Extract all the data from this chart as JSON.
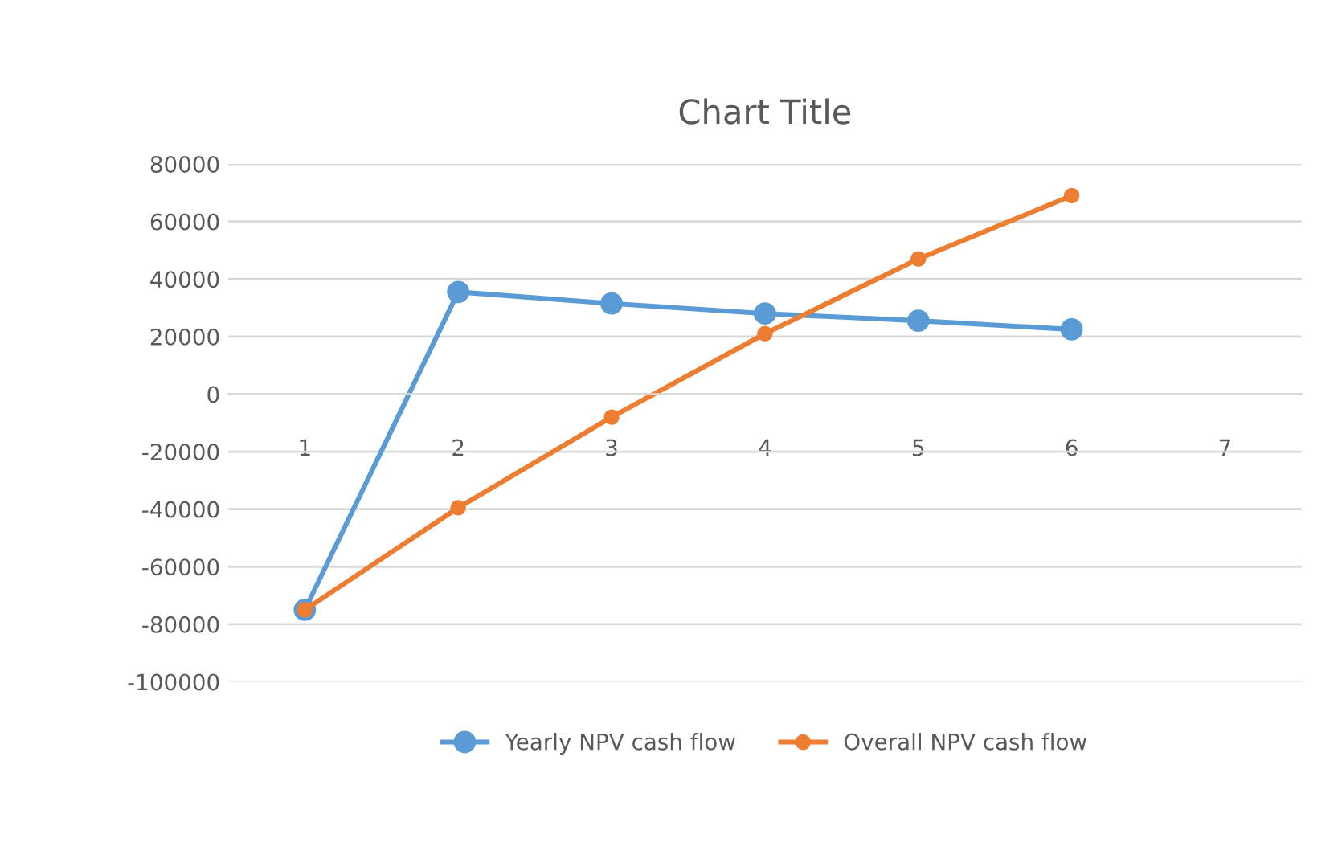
{
  "chart_data": {
    "type": "line",
    "title": "Chart Title",
    "categories": [
      "1",
      "2",
      "3",
      "4",
      "5",
      "6",
      "7"
    ],
    "series": [
      {
        "name": "Yearly NPV cash flow",
        "color": "#5b9bd5",
        "values": [
          -75000,
          35500,
          31500,
          28000,
          25500,
          22500,
          null
        ]
      },
      {
        "name": "Overall NPV cash flow",
        "color": "#ed7d31",
        "values": [
          -75000,
          -39500,
          -8000,
          21000,
          47000,
          69000,
          null
        ]
      }
    ],
    "ylim": [
      -100000,
      80000
    ],
    "yticks": [
      -100000,
      -80000,
      -60000,
      -40000,
      -20000,
      0,
      20000,
      40000,
      60000,
      80000
    ],
    "grid": "y",
    "legend": "bottom",
    "marker": "circle",
    "line_style": "solid"
  }
}
